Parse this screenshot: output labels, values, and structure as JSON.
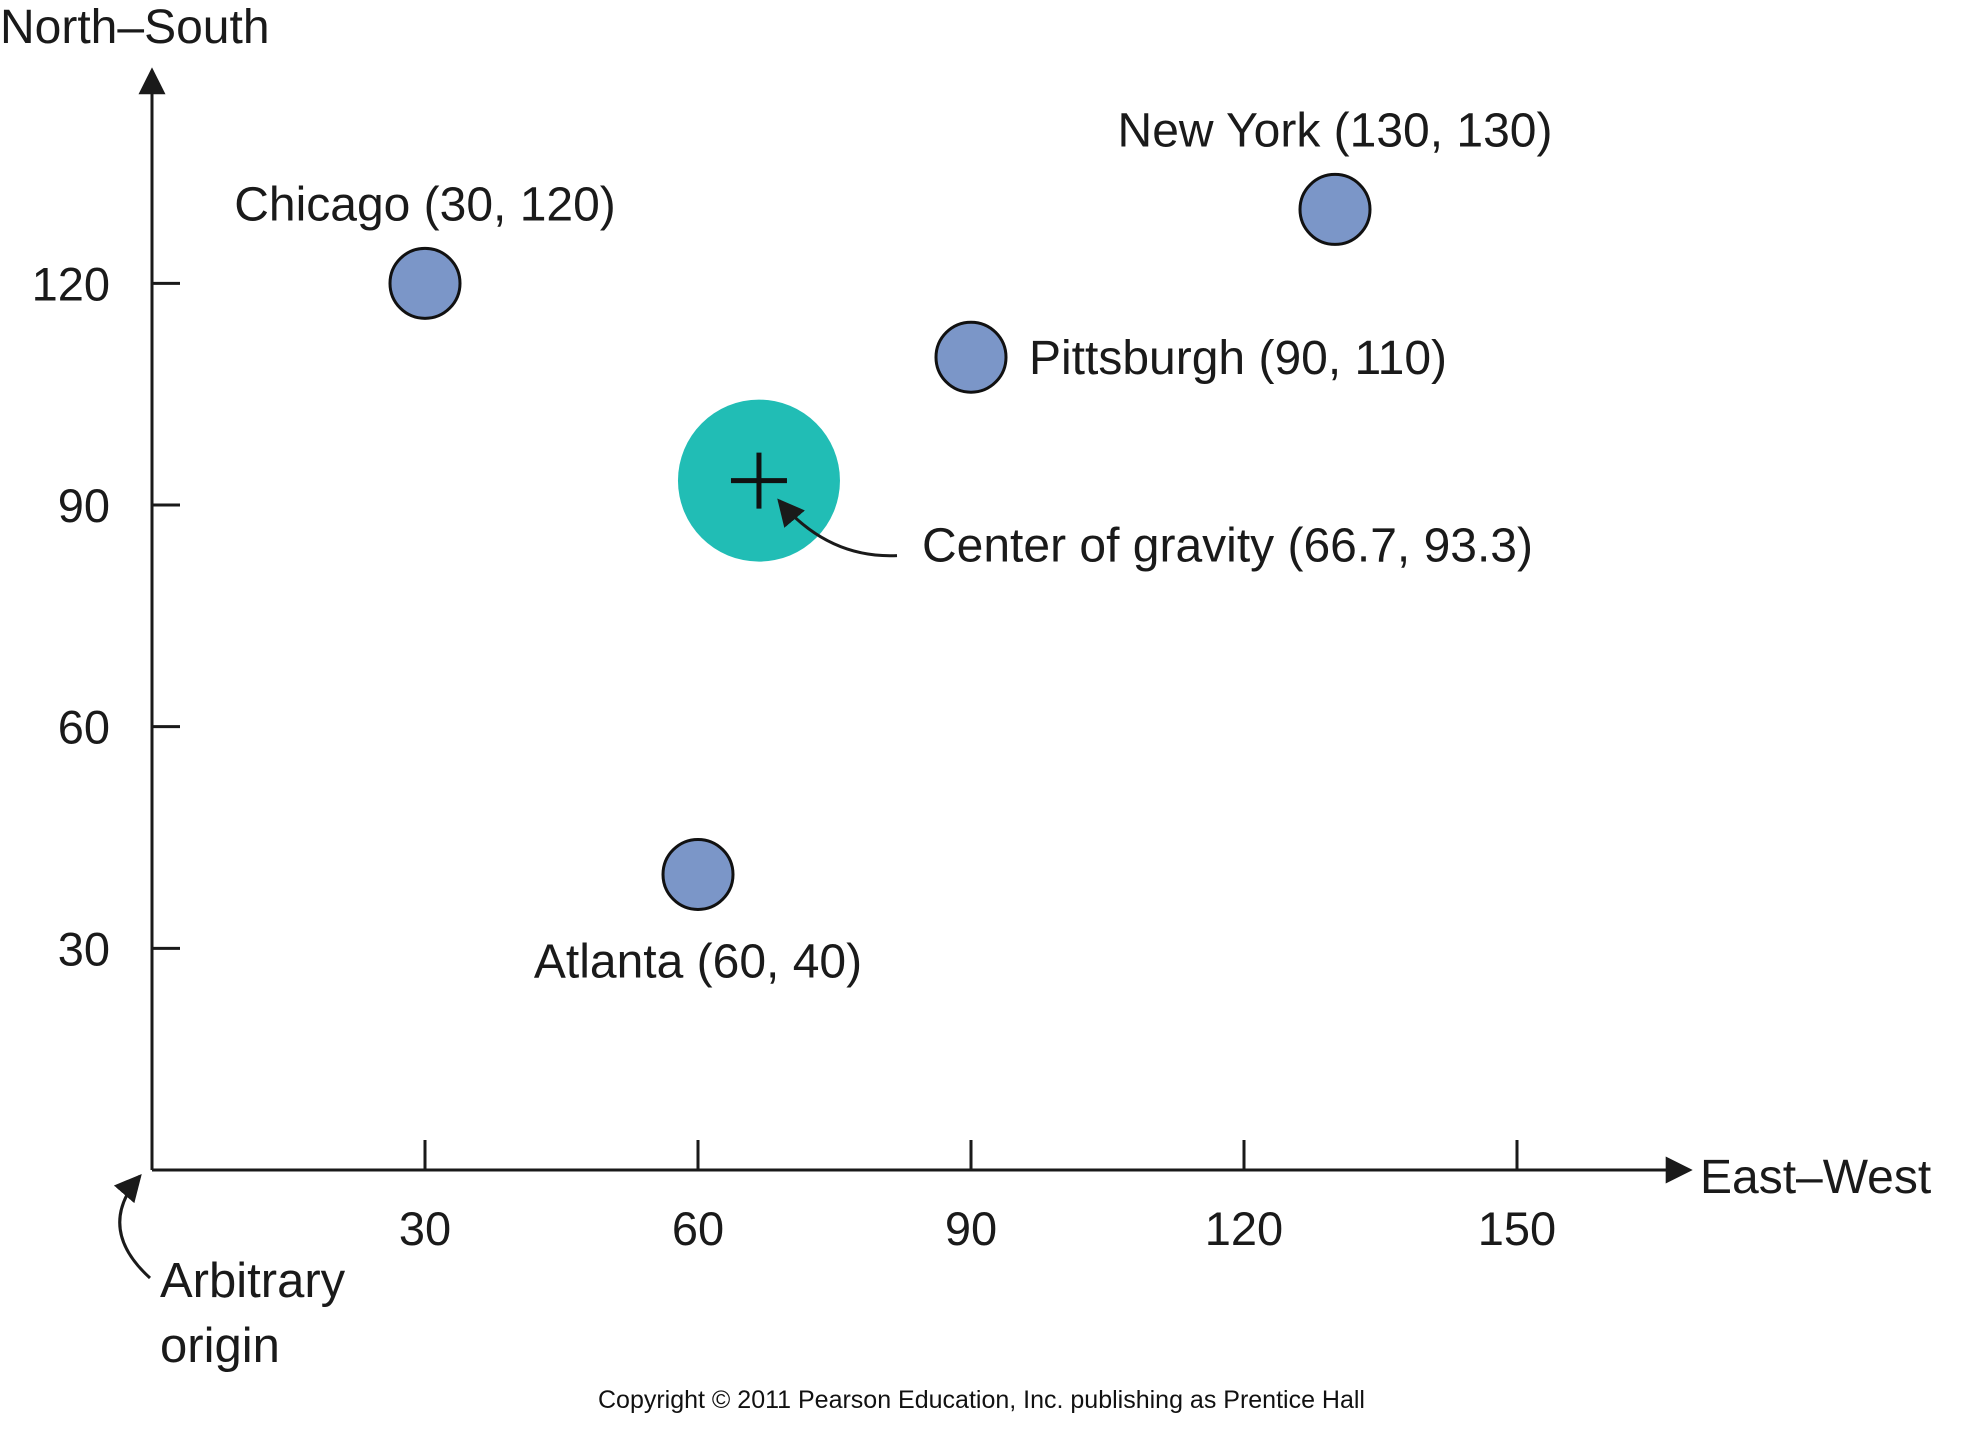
{
  "chart_data": {
    "type": "scatter",
    "xlabel": "East–West",
    "ylabel": "North–South",
    "xlim": [
      0,
      165
    ],
    "ylim": [
      0,
      145
    ],
    "x_ticks": [
      30,
      60,
      90,
      120,
      150
    ],
    "y_ticks": [
      30,
      60,
      90,
      120
    ],
    "grid": false,
    "colors": {
      "city": "#7b96c8",
      "center": "#21bdb5",
      "axis": "#1a1a1a"
    },
    "points": [
      {
        "name": "Chicago",
        "x": 30,
        "y": 120,
        "label": "Chicago (30, 120)",
        "label_side": "above"
      },
      {
        "name": "New York",
        "x": 130,
        "y": 130,
        "label": "New York (130, 130)",
        "label_side": "above"
      },
      {
        "name": "Pittsburgh",
        "x": 90,
        "y": 110,
        "label": "Pittsburgh (90, 110)",
        "label_side": "right"
      },
      {
        "name": "Atlanta",
        "x": 60,
        "y": 40,
        "label": "Atlanta (60, 40)",
        "label_side": "below"
      }
    ],
    "center_of_gravity": {
      "x": 66.7,
      "y": 93.3,
      "label": "Center of gravity (66.7, 93.3)"
    },
    "origin_note": [
      "Arbitrary",
      "origin"
    ]
  },
  "footer": {
    "copyright": "Copyright © 2011 Pearson Education, Inc. publishing as Prentice Hall"
  }
}
